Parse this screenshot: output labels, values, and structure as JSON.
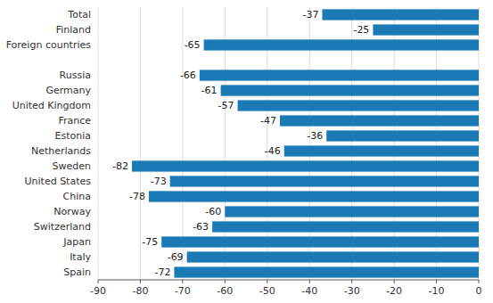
{
  "chart_data": {
    "type": "bar",
    "orientation": "horizontal",
    "categories": [
      "Total",
      "Finland",
      "Foreign countries",
      null,
      "Russia",
      "Germany",
      "United Kingdom",
      "France",
      "Estonia",
      "Netherlands",
      "Sweden",
      "United States",
      "China",
      "Norway",
      "Switzerland",
      "Japan",
      "Italy",
      "Spain"
    ],
    "values": [
      -37,
      -25,
      -65,
      null,
      -66,
      -61,
      -57,
      -47,
      -36,
      -46,
      -82,
      -73,
      -78,
      -60,
      -63,
      -75,
      -69,
      -72
    ],
    "color": "#1a7ab5",
    "xlim": [
      -90,
      0
    ],
    "xticks": [
      -90,
      -80,
      -70,
      -60,
      -50,
      -40,
      -30,
      -20,
      -10,
      0
    ],
    "grid": true,
    "data_labels": true
  }
}
